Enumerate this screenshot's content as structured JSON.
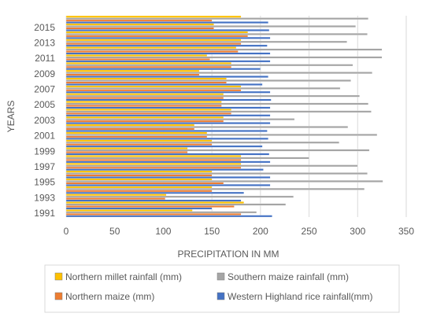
{
  "chart_data": {
    "type": "bar",
    "orientation": "horizontal",
    "title": "",
    "xlabel": "PRECIPITATION IN MM",
    "ylabel": "YEARS",
    "xlim": [
      0,
      350
    ],
    "xticks": [
      0,
      50,
      100,
      150,
      200,
      250,
      300,
      350
    ],
    "grid": true,
    "legend_position": "bottom",
    "categories": [
      "1991",
      "1992",
      "1993",
      "1994",
      "1995",
      "1996",
      "1997",
      "1998",
      "1999",
      "2000",
      "2001",
      "2002",
      "2003",
      "2004",
      "2005",
      "2006",
      "2007",
      "2008",
      "2009",
      "2010",
      "2011",
      "2012",
      "2013",
      "2014",
      "2015",
      "2016"
    ],
    "ytick_labels_shown": [
      "1991",
      "1993",
      "1995",
      "1997",
      "1999",
      "2001",
      "2003",
      "2005",
      "2007",
      "2009",
      "2011",
      "2013",
      "2015"
    ],
    "series": [
      {
        "name": "Western Highland rice rainfall(mm)",
        "color": "#4472c4",
        "values": [
          212,
          150,
          180,
          183,
          210,
          210,
          203,
          210,
          209,
          202,
          208,
          207,
          210,
          210,
          210,
          211,
          210,
          202,
          208,
          200,
          210,
          210,
          207,
          210,
          209,
          208
        ]
      },
      {
        "name": "Northern maize (mm)",
        "color": "#ed7d31",
        "values": [
          180,
          173,
          102,
          150,
          162,
          150,
          180,
          180,
          125,
          150,
          145,
          132,
          162,
          170,
          160,
          162,
          180,
          165,
          137,
          170,
          148,
          177,
          180,
          187,
          152,
          150
        ]
      },
      {
        "name": "Southern maize rainfall (mm)",
        "color": "#a5a5a5",
        "values": [
          196,
          226,
          234,
          307,
          326,
          310,
          300,
          250,
          312,
          281,
          320,
          290,
          235,
          314,
          311,
          302,
          282,
          293,
          315,
          295,
          325,
          325,
          289,
          310,
          298,
          311
        ]
      },
      {
        "name": "Northern millet rainfall (mm)",
        "color": "#ffc000",
        "values": [
          130,
          183,
          103,
          150,
          150,
          150,
          180,
          180,
          125,
          150,
          145,
          132,
          162,
          170,
          160,
          162,
          180,
          165,
          137,
          170,
          145,
          175,
          180,
          187,
          152,
          180
        ]
      }
    ]
  },
  "legend": {
    "items": [
      {
        "label": "Northern millet rainfall (mm)",
        "color": "#ffc000"
      },
      {
        "label": "Southern maize rainfall (mm)",
        "color": "#a5a5a5"
      },
      {
        "label": "Northern maize (mm)",
        "color": "#ed7d31"
      },
      {
        "label": "Western Highland rice rainfall(mm)",
        "color": "#4472c4"
      }
    ]
  },
  "colors": {
    "background": "#ffffff",
    "gridline": "#d9d9d9",
    "text": "#595959",
    "legend_border": "#bfbfbf"
  }
}
